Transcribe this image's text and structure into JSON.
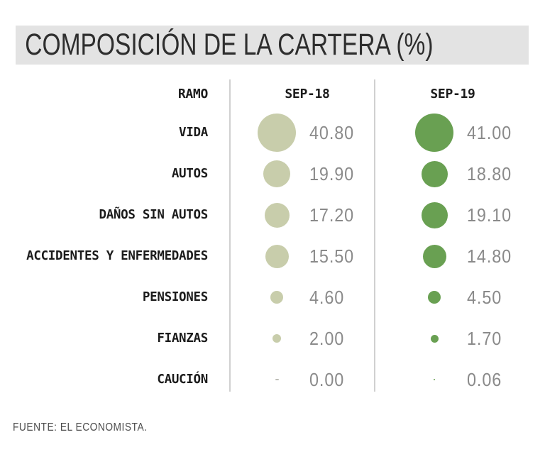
{
  "title": "COMPOSICIÓN DE LA CARTERA (%)",
  "source": "FUENTE: EL ECONOMISTA.",
  "columns": {
    "ramo": "RAMO",
    "sep18": "SEP-18",
    "sep19": "SEP-19"
  },
  "colors": {
    "sep18_bubble": "#c8cdab",
    "sep19_bubble": "#69a052",
    "zero_dash": "#bdbdb6",
    "title_bar_bg": "#e3e3e3",
    "divider": "#d0d0d0",
    "label_text": "#1b1b1b",
    "value_text": "#8a8a8a"
  },
  "chart_data": {
    "type": "bubble",
    "title": "COMPOSICIÓN DE LA CARTERA (%)",
    "categories": [
      "VIDA",
      "AUTOS",
      "DAÑOS SIN AUTOS",
      "ACCIDENTES Y ENFERMEDADES",
      "PENSIONES",
      "FIANZAS",
      "CAUCIÓN"
    ],
    "series": [
      {
        "name": "SEP-18",
        "values": [
          40.8,
          19.9,
          17.2,
          15.5,
          4.6,
          2.0,
          0.0
        ]
      },
      {
        "name": "SEP-19",
        "values": [
          41.0,
          18.8,
          19.1,
          14.8,
          4.5,
          1.7,
          0.06
        ]
      }
    ],
    "value_format": "two_decimals",
    "bubble_size_encodes": "value (area ~ value)",
    "legend_position": "column headers",
    "grid": false
  }
}
